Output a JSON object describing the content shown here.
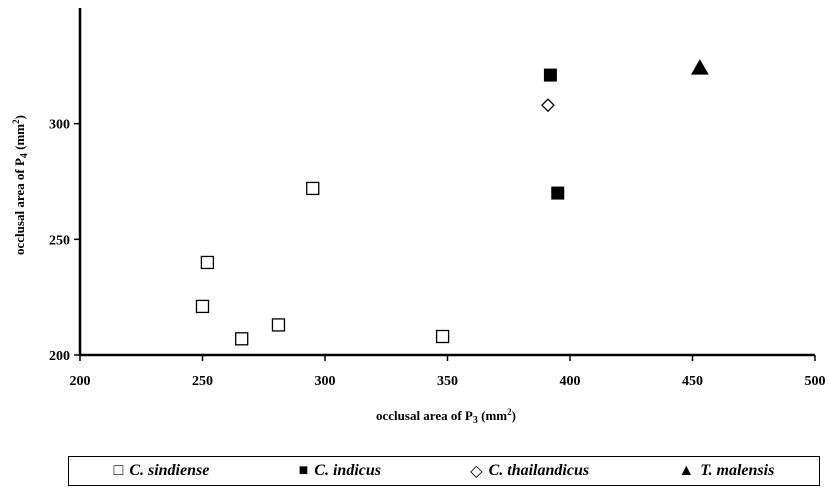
{
  "chart_data": {
    "type": "scatter",
    "title": "",
    "xlabel": {
      "prefix": "occlusal area of P",
      "sub": "3",
      "unit_base": " (mm",
      "unit_sup": "2",
      "unit_end": ")"
    },
    "ylabel": {
      "prefix": "occlusal area of P",
      "sub": "4",
      "unit_base": " (mm",
      "unit_sup": "2",
      "unit_end": ")"
    },
    "xlim": [
      200,
      500
    ],
    "ylim": [
      200,
      350
    ],
    "xticks": [
      200,
      250,
      300,
      350,
      400,
      450,
      500
    ],
    "yticks": [
      200,
      250,
      300
    ],
    "grid": false,
    "legend_position": "bottom",
    "series": [
      {
        "name": "C. sindiense",
        "marker": "square-open",
        "points": [
          [
            252,
            240
          ],
          [
            250,
            221
          ],
          [
            266,
            207
          ],
          [
            281,
            213
          ],
          [
            295,
            272
          ],
          [
            348,
            208
          ]
        ]
      },
      {
        "name": "C. indicus",
        "marker": "square-filled",
        "points": [
          [
            392,
            321
          ],
          [
            395,
            270
          ]
        ]
      },
      {
        "name": "C. thailandicus",
        "marker": "diamond-open",
        "points": [
          [
            391,
            308
          ]
        ]
      },
      {
        "name": "T. malensis",
        "marker": "triangle-filled",
        "points": [
          [
            453,
            324
          ]
        ]
      }
    ]
  }
}
